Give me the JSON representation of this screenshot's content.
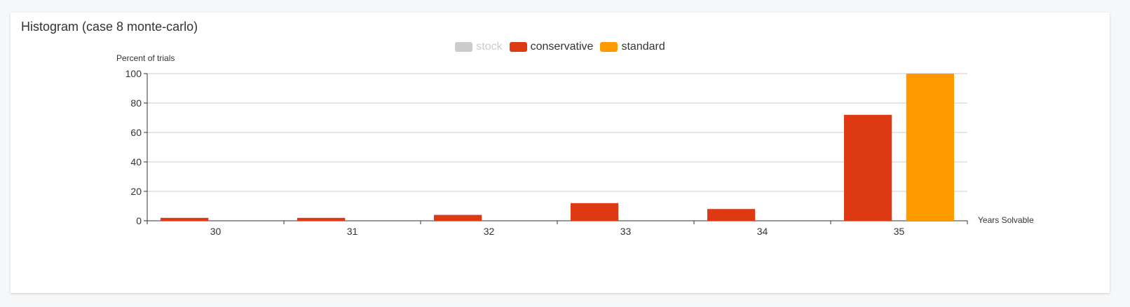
{
  "card": {
    "title": "Histogram (case 8 monte-carlo)"
  },
  "legend": [
    {
      "label": "stock",
      "color": "#cccccc",
      "active": false
    },
    {
      "label": "conservative",
      "color": "#dd3913",
      "active": true
    },
    {
      "label": "standard",
      "color": "#ff9900",
      "active": true
    }
  ],
  "chart_data": {
    "type": "bar",
    "title": "",
    "xlabel": "Years Solvable",
    "ylabel": "Percent of trials",
    "categories": [
      "30",
      "31",
      "32",
      "33",
      "34",
      "35"
    ],
    "ylim": [
      0,
      100
    ],
    "yticks": [
      "0",
      "20",
      "40",
      "60",
      "80",
      "100"
    ],
    "grid": true,
    "legend_position": "top-center",
    "series": [
      {
        "name": "conservative",
        "color": "#dd3913",
        "values": [
          2,
          2,
          4,
          12,
          8,
          72
        ]
      },
      {
        "name": "standard",
        "color": "#ff9900",
        "values": [
          0,
          0,
          0,
          0,
          0,
          100
        ]
      }
    ]
  }
}
